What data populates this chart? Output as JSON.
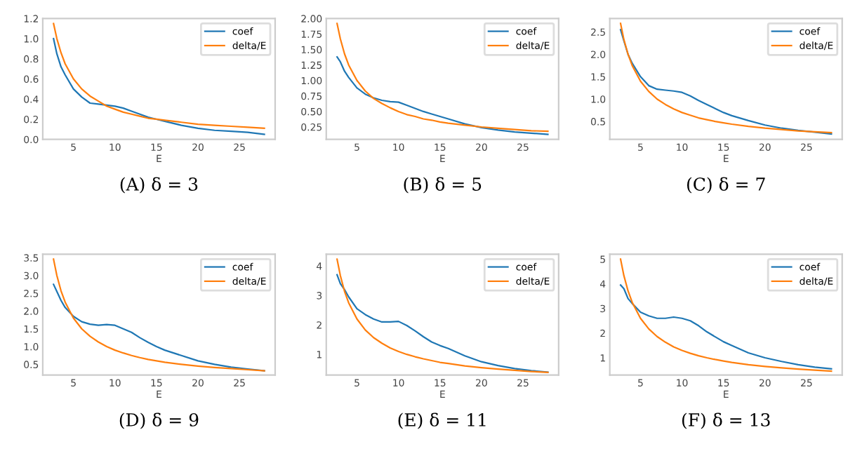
{
  "chart_data": [
    {
      "type": "line",
      "title": "(A) δ = 3",
      "xlabel": "E",
      "x": [
        2.6,
        3,
        3.5,
        4,
        5,
        6,
        7,
        8,
        9,
        10,
        11,
        12,
        13,
        14,
        15,
        16,
        18,
        20,
        22,
        24,
        26,
        28
      ],
      "xlim": [
        1.3,
        29.3
      ],
      "xticks": [
        5,
        10,
        15,
        20,
        25
      ],
      "ylim": [
        0,
        1.2
      ],
      "yticks": [
        {
          "value": 0,
          "label": "0.0"
        },
        0.2,
        0.4,
        0.6,
        0.8,
        {
          "value": 1,
          "label": "1.0"
        },
        1.2
      ],
      "legend": "top right",
      "grid": false,
      "series": [
        {
          "name": "coef",
          "color": "#1f77b4",
          "values": [
            1.0,
            0.85,
            0.72,
            0.64,
            0.5,
            0.42,
            0.36,
            0.35,
            0.34,
            0.33,
            0.31,
            0.28,
            0.25,
            0.22,
            0.2,
            0.18,
            0.14,
            0.11,
            0.09,
            0.08,
            0.07,
            0.05
          ]
        },
        {
          "name": "delta/E",
          "color": "#ff7f0e",
          "values": [
            1.15,
            1.0,
            0.86,
            0.75,
            0.6,
            0.5,
            0.43,
            0.38,
            0.33,
            0.3,
            0.27,
            0.25,
            0.23,
            0.21,
            0.2,
            0.19,
            0.17,
            0.15,
            0.14,
            0.13,
            0.12,
            0.11
          ]
        }
      ]
    },
    {
      "type": "line",
      "title": "(B) δ = 5",
      "xlabel": "E",
      "x": [
        2.6,
        3,
        3.5,
        4,
        5,
        6,
        7,
        8,
        9,
        10,
        11,
        12,
        13,
        14,
        15,
        16,
        18,
        20,
        22,
        24,
        26,
        28
      ],
      "xlim": [
        1.3,
        29.3
      ],
      "xticks": [
        5,
        10,
        15,
        20,
        25
      ],
      "ylim": [
        0.05,
        2.0
      ],
      "yticks": [
        0.25,
        {
          "value": 0.5,
          "label": "0.50"
        },
        0.75,
        {
          "value": 1,
          "label": "1.00"
        },
        1.25,
        {
          "value": 1.5,
          "label": "1.50"
        },
        1.75,
        {
          "value": 2,
          "label": "2.00"
        }
      ],
      "legend": "top right",
      "grid": false,
      "series": [
        {
          "name": "coef",
          "color": "#1f77b4",
          "values": [
            1.38,
            1.3,
            1.15,
            1.05,
            0.88,
            0.78,
            0.72,
            0.68,
            0.66,
            0.65,
            0.6,
            0.55,
            0.5,
            0.46,
            0.42,
            0.38,
            0.3,
            0.24,
            0.2,
            0.17,
            0.15,
            0.13
          ]
        },
        {
          "name": "delta/E",
          "color": "#ff7f0e",
          "values": [
            1.92,
            1.67,
            1.43,
            1.25,
            1.0,
            0.83,
            0.71,
            0.63,
            0.56,
            0.5,
            0.45,
            0.42,
            0.38,
            0.36,
            0.33,
            0.31,
            0.28,
            0.25,
            0.23,
            0.21,
            0.19,
            0.18
          ]
        }
      ]
    },
    {
      "type": "line",
      "title": "(C) δ = 7",
      "xlabel": "E",
      "x": [
        2.6,
        3,
        3.5,
        4,
        5,
        6,
        7,
        8,
        9,
        10,
        11,
        12,
        13,
        14,
        15,
        16,
        18,
        20,
        22,
        24,
        26,
        28
      ],
      "xlim": [
        1.3,
        29.3
      ],
      "xticks": [
        5,
        10,
        15,
        20,
        25
      ],
      "ylim": [
        0.1,
        2.8
      ],
      "yticks": [
        0.5,
        {
          "value": 1,
          "label": "1.0"
        },
        1.5,
        {
          "value": 2,
          "label": "2.0"
        },
        2.5
      ],
      "legend": "top right",
      "grid": false,
      "series": [
        {
          "name": "coef",
          "color": "#1f77b4",
          "values": [
            2.55,
            2.3,
            2.0,
            1.8,
            1.5,
            1.3,
            1.22,
            1.2,
            1.18,
            1.15,
            1.07,
            0.97,
            0.88,
            0.79,
            0.7,
            0.63,
            0.52,
            0.42,
            0.35,
            0.3,
            0.26,
            0.22
          ]
        },
        {
          "name": "delta/E",
          "color": "#ff7f0e",
          "values": [
            2.69,
            2.33,
            2.0,
            1.75,
            1.4,
            1.17,
            1.0,
            0.88,
            0.78,
            0.7,
            0.64,
            0.58,
            0.54,
            0.5,
            0.47,
            0.44,
            0.39,
            0.35,
            0.32,
            0.29,
            0.27,
            0.25
          ]
        }
      ]
    },
    {
      "type": "line",
      "title": "(D) δ = 9",
      "xlabel": "E",
      "x": [
        2.6,
        3,
        3.5,
        4,
        5,
        6,
        7,
        8,
        9,
        10,
        11,
        12,
        13,
        14,
        15,
        16,
        18,
        20,
        22,
        24,
        26,
        28
      ],
      "xlim": [
        1.3,
        29.3
      ],
      "xticks": [
        5,
        10,
        15,
        20,
        25
      ],
      "ylim": [
        0.2,
        3.6
      ],
      "yticks": [
        0.5,
        {
          "value": 1,
          "label": "1.0"
        },
        1.5,
        {
          "value": 2,
          "label": "2.0"
        },
        2.5,
        {
          "value": 3,
          "label": "3.0"
        },
        3.5
      ],
      "legend": "top right",
      "grid": false,
      "series": [
        {
          "name": "coef",
          "color": "#1f77b4",
          "values": [
            2.75,
            2.55,
            2.3,
            2.1,
            1.85,
            1.7,
            1.63,
            1.6,
            1.62,
            1.6,
            1.5,
            1.4,
            1.25,
            1.12,
            1.0,
            0.9,
            0.75,
            0.6,
            0.5,
            0.42,
            0.37,
            0.32
          ]
        },
        {
          "name": "delta/E",
          "color": "#ff7f0e",
          "values": [
            3.46,
            3.0,
            2.57,
            2.25,
            1.8,
            1.5,
            1.29,
            1.13,
            1.0,
            0.9,
            0.82,
            0.75,
            0.69,
            0.64,
            0.6,
            0.56,
            0.5,
            0.45,
            0.41,
            0.38,
            0.35,
            0.32
          ]
        }
      ]
    },
    {
      "type": "line",
      "title": "(E) δ = 11",
      "xlabel": "E",
      "x": [
        2.6,
        3,
        3.5,
        4,
        5,
        6,
        7,
        8,
        9,
        10,
        11,
        12,
        13,
        14,
        15,
        16,
        18,
        20,
        22,
        24,
        26,
        28
      ],
      "xlim": [
        1.3,
        29.3
      ],
      "xticks": [
        5,
        10,
        15,
        20,
        25
      ],
      "ylim": [
        0.3,
        4.4
      ],
      "yticks": [
        1,
        2,
        3,
        4
      ],
      "legend": "top right",
      "grid": false,
      "series": [
        {
          "name": "coef",
          "color": "#1f77b4",
          "values": [
            3.7,
            3.4,
            3.2,
            2.95,
            2.55,
            2.35,
            2.2,
            2.1,
            2.1,
            2.12,
            1.98,
            1.8,
            1.6,
            1.42,
            1.3,
            1.2,
            0.95,
            0.75,
            0.62,
            0.52,
            0.45,
            0.4
          ]
        },
        {
          "name": "delta/E",
          "color": "#ff7f0e",
          "values": [
            4.23,
            3.67,
            3.14,
            2.75,
            2.2,
            1.83,
            1.57,
            1.38,
            1.22,
            1.1,
            1.0,
            0.92,
            0.85,
            0.79,
            0.73,
            0.69,
            0.61,
            0.55,
            0.5,
            0.46,
            0.42,
            0.39
          ]
        }
      ]
    },
    {
      "type": "line",
      "title": "(F) δ = 13",
      "xlabel": "E",
      "x": [
        2.6,
        3,
        3.5,
        4,
        5,
        6,
        7,
        8,
        9,
        10,
        11,
        12,
        13,
        14,
        15,
        16,
        18,
        20,
        22,
        24,
        26,
        28
      ],
      "xlim": [
        1.3,
        29.3
      ],
      "xticks": [
        5,
        10,
        15,
        20,
        25
      ],
      "ylim": [
        0.3,
        5.2
      ],
      "yticks": [
        1,
        2,
        3,
        4,
        5
      ],
      "legend": "top right",
      "grid": false,
      "series": [
        {
          "name": "coef",
          "color": "#1f77b4",
          "values": [
            3.95,
            3.8,
            3.4,
            3.2,
            2.85,
            2.7,
            2.6,
            2.6,
            2.65,
            2.6,
            2.5,
            2.3,
            2.05,
            1.85,
            1.65,
            1.5,
            1.2,
            1.0,
            0.85,
            0.72,
            0.62,
            0.55
          ]
        },
        {
          "name": "delta/E",
          "color": "#ff7f0e",
          "values": [
            5.0,
            4.33,
            3.71,
            3.25,
            2.6,
            2.17,
            1.86,
            1.63,
            1.44,
            1.3,
            1.18,
            1.08,
            1.0,
            0.93,
            0.87,
            0.81,
            0.72,
            0.65,
            0.59,
            0.54,
            0.5,
            0.46
          ]
        }
      ]
    }
  ]
}
